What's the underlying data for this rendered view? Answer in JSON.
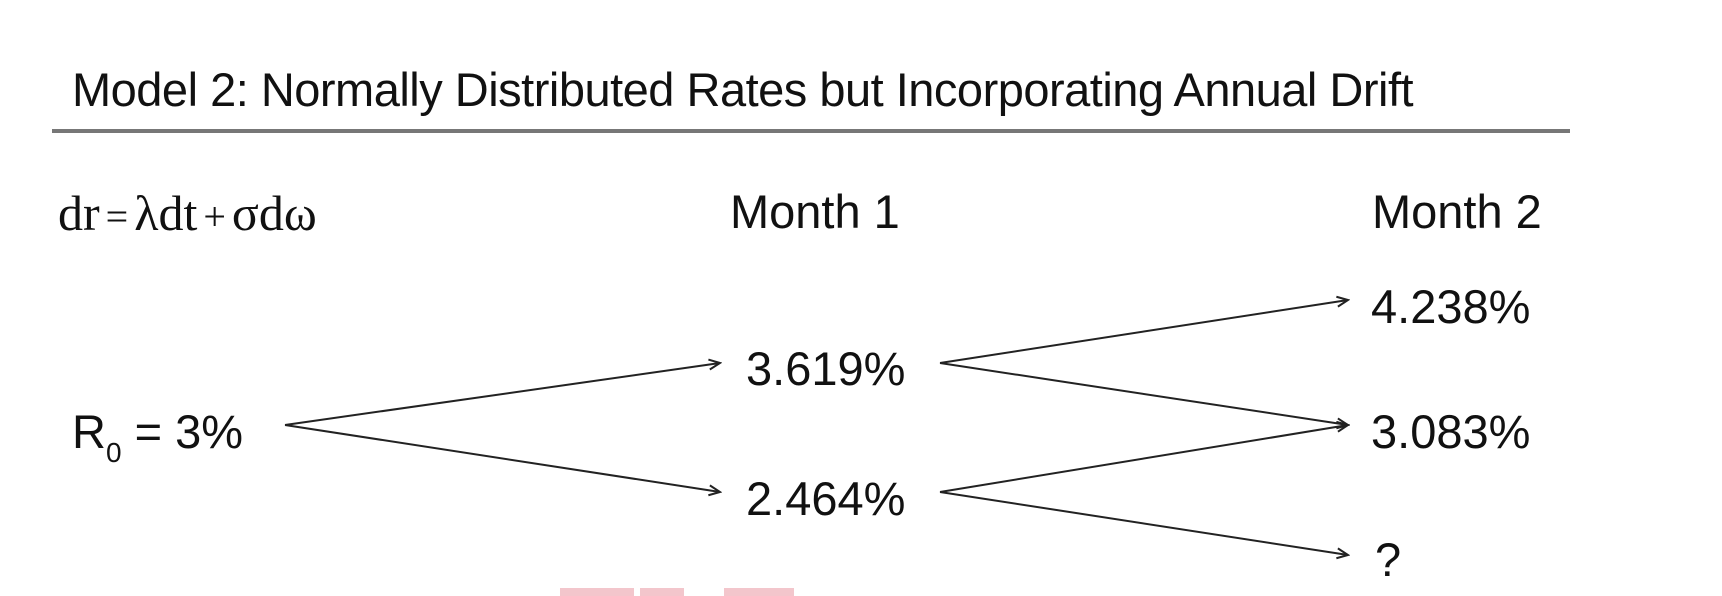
{
  "title": "Model 2: Normally Distributed Rates but Incorporating Annual Drift",
  "formula": {
    "lhs": "dr",
    "eq": "=",
    "drift": "λdt",
    "plus": "+",
    "shock": "σdω"
  },
  "headers": {
    "month1": "Month 1",
    "month2": "Month 2"
  },
  "start": {
    "symbol": "R",
    "subscript": "0",
    "rest": " = 3%"
  },
  "month1": {
    "up": "3.619%",
    "down": "2.464%"
  },
  "month2": {
    "up": "4.238%",
    "mid": "3.083%",
    "down": "?"
  },
  "colors": {
    "text": "#111111",
    "rule": "#777777",
    "arrow": "#222222"
  }
}
